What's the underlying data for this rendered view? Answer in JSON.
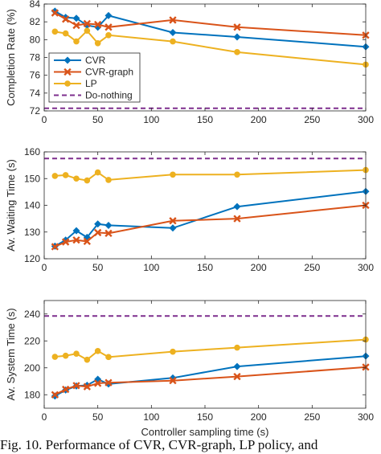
{
  "chart_data": [
    {
      "type": "line",
      "title": "",
      "xlabel": "",
      "ylabel": "Completion Rate (%)",
      "xlim": [
        0,
        300
      ],
      "ylim": [
        72,
        84
      ],
      "xticks": [
        0,
        50,
        100,
        150,
        200,
        250,
        300
      ],
      "yticks": [
        72,
        74,
        76,
        78,
        80,
        82,
        84
      ],
      "grid": false,
      "legend": {
        "placement": "center-left",
        "entries": [
          "CVR",
          "CVR-graph",
          "LP",
          "Do-nothing"
        ]
      },
      "series": [
        {
          "name": "CVR",
          "color": "#0072BD",
          "x": [
            10,
            20,
            30,
            40,
            50,
            60,
            120,
            180,
            300
          ],
          "y": [
            83.2,
            82.5,
            82.4,
            81.6,
            81.4,
            82.7,
            80.8,
            80.3,
            79.2
          ]
        },
        {
          "name": "CVR-graph",
          "color": "#D95319",
          "x": [
            10,
            20,
            30,
            40,
            50,
            60,
            120,
            180,
            300
          ],
          "y": [
            83.0,
            82.3,
            81.6,
            81.8,
            81.7,
            81.4,
            82.2,
            81.4,
            80.5
          ]
        },
        {
          "name": "LP",
          "color": "#EDB120",
          "x": [
            10,
            20,
            30,
            40,
            50,
            60,
            120,
            180,
            300
          ],
          "y": [
            80.9,
            80.7,
            79.8,
            81.0,
            79.6,
            80.5,
            79.8,
            78.6,
            77.2
          ]
        },
        {
          "name": "Do-nothing",
          "color": "#7E2F8E",
          "dashed": true,
          "x": [
            0,
            300
          ],
          "y": [
            72.3,
            72.3
          ]
        }
      ]
    },
    {
      "type": "line",
      "title": "",
      "xlabel": "",
      "ylabel": "Av. Waiting Time (s)",
      "xlim": [
        0,
        300
      ],
      "ylim": [
        120,
        160
      ],
      "xticks": [
        0,
        50,
        100,
        150,
        200,
        250,
        300
      ],
      "yticks": [
        120,
        130,
        140,
        150,
        160
      ],
      "grid": false,
      "series": [
        {
          "name": "CVR",
          "color": "#0072BD",
          "x": [
            10,
            20,
            30,
            40,
            50,
            60,
            120,
            180,
            300
          ],
          "y": [
            124.7,
            127.0,
            130.5,
            128.0,
            133.0,
            132.5,
            131.5,
            139.5,
            145.2
          ]
        },
        {
          "name": "CVR-graph",
          "color": "#D95319",
          "x": [
            10,
            20,
            30,
            40,
            50,
            60,
            120,
            180,
            300
          ],
          "y": [
            124.5,
            126.3,
            127.0,
            126.5,
            129.8,
            129.5,
            134.2,
            135.0,
            140.0
          ]
        },
        {
          "name": "LP",
          "color": "#EDB120",
          "x": [
            10,
            20,
            30,
            40,
            50,
            60,
            120,
            180,
            300
          ],
          "y": [
            151.0,
            151.3,
            150.0,
            149.3,
            152.3,
            149.5,
            151.5,
            151.5,
            153.2
          ]
        },
        {
          "name": "Do-nothing",
          "color": "#7E2F8E",
          "dashed": true,
          "x": [
            0,
            300
          ],
          "y": [
            157.5,
            157.5
          ]
        }
      ]
    },
    {
      "type": "line",
      "title": "",
      "xlabel": "Controller sampling time (s)",
      "ylabel": "Av. System Time (s)",
      "xlim": [
        0,
        300
      ],
      "ylim": [
        170,
        250
      ],
      "xticks": [
        0,
        50,
        100,
        150,
        200,
        250,
        300
      ],
      "yticks": [
        180,
        200,
        220,
        240
      ],
      "grid": false,
      "series": [
        {
          "name": "CVR",
          "color": "#0072BD",
          "x": [
            10,
            20,
            30,
            40,
            50,
            60,
            120,
            180,
            300
          ],
          "y": [
            179.0,
            183.5,
            186.5,
            187.0,
            191.5,
            188.0,
            192.5,
            201.0,
            208.7
          ]
        },
        {
          "name": "CVR-graph",
          "color": "#D95319",
          "x": [
            10,
            20,
            30,
            40,
            50,
            60,
            120,
            180,
            300
          ],
          "y": [
            180.0,
            184.0,
            186.8,
            186.0,
            188.5,
            189.0,
            190.5,
            193.5,
            200.5
          ]
        },
        {
          "name": "LP",
          "color": "#EDB120",
          "x": [
            10,
            20,
            30,
            40,
            50,
            60,
            120,
            180,
            300
          ],
          "y": [
            208.2,
            209.0,
            210.5,
            206.0,
            212.5,
            208.0,
            212.0,
            215.0,
            221.0
          ]
        },
        {
          "name": "Do-nothing",
          "color": "#7E2F8E",
          "dashed": true,
          "x": [
            0,
            300
          ],
          "y": [
            238.5,
            238.5
          ]
        }
      ]
    }
  ],
  "caption": "Fig. 10. Performance of CVR, CVR-graph, LP policy, and"
}
